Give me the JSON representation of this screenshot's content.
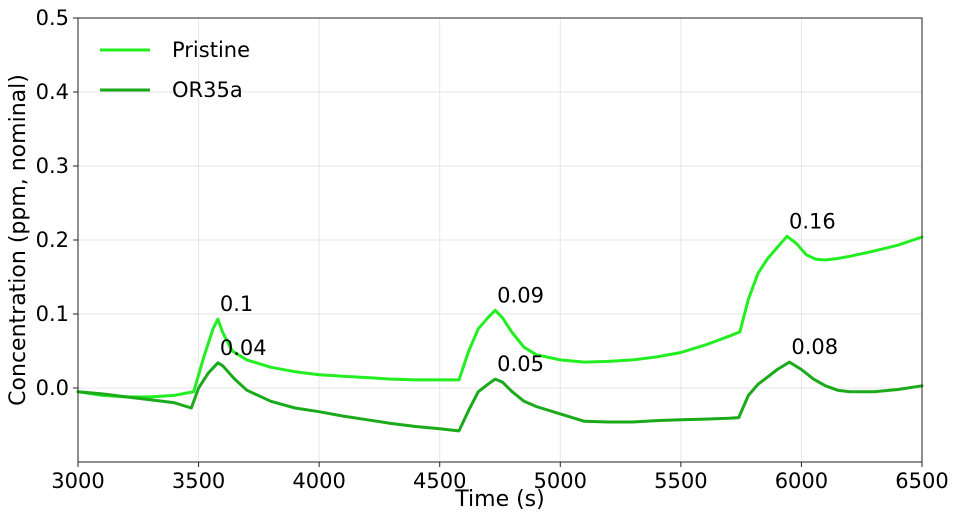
{
  "chart_data": {
    "type": "line",
    "title": "",
    "xlabel": "Time (s)",
    "ylabel": "Concentration (ppm, nominal)",
    "xlim": [
      3000,
      6500
    ],
    "ylim": [
      -0.1,
      0.5
    ],
    "xticks": [
      3000,
      3500,
      4000,
      4500,
      5000,
      5500,
      6000,
      6500
    ],
    "yticks": [
      0.0,
      0.1,
      0.2,
      0.3,
      0.4,
      0.5
    ],
    "xtick_labels": [
      "3000",
      "3500",
      "4000",
      "4500",
      "5000",
      "5500",
      "6000",
      "6500"
    ],
    "ytick_labels": [
      "0.0",
      "0.1",
      "0.2",
      "0.3",
      "0.4",
      "0.5"
    ],
    "grid": true,
    "legend_position": "top-left",
    "series": [
      {
        "name": "Pristine",
        "color": "#22ee22",
        "x": [
          3000,
          3100,
          3200,
          3300,
          3400,
          3480,
          3520,
          3560,
          3580,
          3600,
          3640,
          3700,
          3800,
          3900,
          4000,
          4100,
          4200,
          4300,
          4400,
          4500,
          4580,
          4620,
          4660,
          4700,
          4730,
          4760,
          4800,
          4850,
          4900,
          5000,
          5100,
          5200,
          5300,
          5400,
          5500,
          5600,
          5700,
          5745,
          5780,
          5820,
          5860,
          5900,
          5940,
          5980,
          6020,
          6060,
          6100,
          6150,
          6200,
          6300,
          6400,
          6500
        ],
        "values": [
          -0.005,
          -0.01,
          -0.012,
          -0.012,
          -0.01,
          -0.005,
          0.04,
          0.08,
          0.093,
          0.075,
          0.05,
          0.038,
          0.028,
          0.022,
          0.018,
          0.016,
          0.014,
          0.012,
          0.011,
          0.011,
          0.011,
          0.05,
          0.08,
          0.095,
          0.105,
          0.095,
          0.075,
          0.055,
          0.045,
          0.038,
          0.035,
          0.036,
          0.038,
          0.042,
          0.048,
          0.058,
          0.07,
          0.076,
          0.12,
          0.155,
          0.175,
          0.19,
          0.205,
          0.195,
          0.18,
          0.174,
          0.173,
          0.175,
          0.178,
          0.185,
          0.193,
          0.204
        ]
      },
      {
        "name": "OR35a",
        "color": "#1aaa1a",
        "x": [
          3000,
          3100,
          3200,
          3300,
          3400,
          3470,
          3500,
          3540,
          3580,
          3600,
          3650,
          3700,
          3800,
          3900,
          4000,
          4100,
          4200,
          4300,
          4400,
          4500,
          4580,
          4620,
          4660,
          4700,
          4730,
          4760,
          4800,
          4850,
          4900,
          5000,
          5100,
          5200,
          5300,
          5400,
          5500,
          5600,
          5700,
          5740,
          5780,
          5820,
          5860,
          5900,
          5950,
          6000,
          6050,
          6100,
          6150,
          6200,
          6300,
          6400,
          6500
        ],
        "values": [
          -0.005,
          -0.008,
          -0.012,
          -0.016,
          -0.02,
          -0.027,
          0.0,
          0.02,
          0.034,
          0.03,
          0.012,
          -0.003,
          -0.018,
          -0.027,
          -0.032,
          -0.038,
          -0.043,
          -0.048,
          -0.052,
          -0.055,
          -0.058,
          -0.03,
          -0.005,
          0.005,
          0.012,
          0.008,
          -0.005,
          -0.018,
          -0.025,
          -0.035,
          -0.045,
          -0.046,
          -0.046,
          -0.044,
          -0.043,
          -0.042,
          -0.041,
          -0.04,
          -0.01,
          0.005,
          0.015,
          0.025,
          0.035,
          0.025,
          0.012,
          0.003,
          -0.003,
          -0.005,
          -0.005,
          -0.002,
          0.003
        ]
      }
    ],
    "annotations": [
      {
        "text": "0.1",
        "x": 3580,
        "y": 0.093
      },
      {
        "text": "0.04",
        "x": 3580,
        "y": 0.034
      },
      {
        "text": "0.09",
        "x": 4730,
        "y": 0.105
      },
      {
        "text": "0.05",
        "x": 4730,
        "y": 0.012
      },
      {
        "text": "0.16",
        "x": 5940,
        "y": 0.205
      },
      {
        "text": "0.08",
        "x": 5950,
        "y": 0.035
      }
    ]
  }
}
